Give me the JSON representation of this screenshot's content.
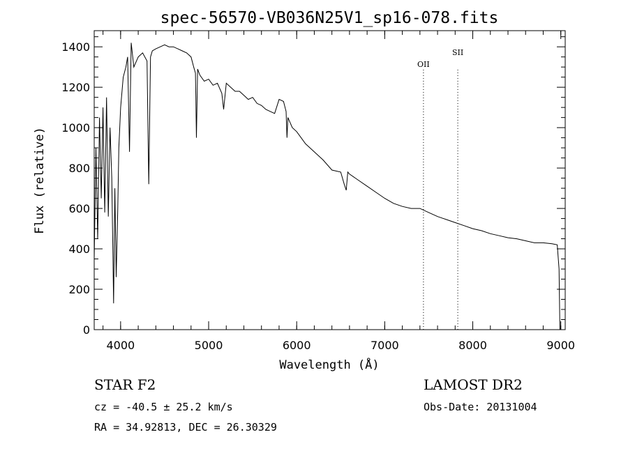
{
  "chart_data": {
    "type": "line",
    "title": "spec-56570-VB036N25V1_sp16-078.fits",
    "xlabel": "Wavelength (Å)",
    "ylabel": "Flux (relative)",
    "xlim": [
      3700,
      9050
    ],
    "ylim": [
      0,
      1480
    ],
    "xticks": [
      4000,
      5000,
      6000,
      7000,
      8000,
      9000
    ],
    "yticks": [
      0,
      200,
      400,
      600,
      800,
      1000,
      1200,
      1400
    ],
    "grid": false,
    "lines": [
      {
        "label": "OII",
        "x": 7440
      },
      {
        "label": "SII",
        "x": 7830
      }
    ],
    "series": [
      {
        "x": [
          3700,
          3720,
          3740,
          3760,
          3780,
          3800,
          3820,
          3840,
          3860,
          3880,
          3900,
          3920,
          3935,
          3950,
          3968,
          3980,
          4000,
          4030,
          4060,
          4080,
          4101,
          4120,
          4150,
          4200,
          4250,
          4300,
          4320,
          4340,
          4360,
          4400,
          4450,
          4500,
          4550,
          4600,
          4650,
          4700,
          4750,
          4800,
          4830,
          4850,
          4861,
          4875,
          4900,
          4950,
          5000,
          5050,
          5100,
          5150,
          5170,
          5200,
          5250,
          5300,
          5350,
          5400,
          5450,
          5500,
          5550,
          5600,
          5650,
          5700,
          5750,
          5800,
          5850,
          5880,
          5890,
          5900,
          5920,
          5950,
          6000,
          6050,
          6100,
          6200,
          6300,
          6400,
          6500,
          6540,
          6563,
          6580,
          6600,
          6700,
          6800,
          6900,
          7000,
          7100,
          7200,
          7300,
          7400,
          7500,
          7600,
          7700,
          7800,
          7900,
          8000,
          8100,
          8200,
          8300,
          8400,
          8500,
          8600,
          8700,
          8800,
          8900,
          8960,
          8980,
          8990,
          9000
        ],
        "y": [
          350,
          900,
          450,
          1050,
          650,
          1100,
          580,
          1150,
          560,
          1000,
          750,
          130,
          700,
          260,
          600,
          900,
          1100,
          1250,
          1300,
          1350,
          880,
          1420,
          1300,
          1350,
          1370,
          1330,
          720,
          1350,
          1380,
          1390,
          1400,
          1410,
          1400,
          1400,
          1390,
          1380,
          1370,
          1350,
          1300,
          1270,
          950,
          1290,
          1260,
          1230,
          1240,
          1210,
          1220,
          1170,
          1090,
          1220,
          1200,
          1180,
          1180,
          1160,
          1140,
          1150,
          1120,
          1110,
          1090,
          1080,
          1070,
          1140,
          1130,
          1080,
          950,
          1050,
          1030,
          1000,
          980,
          950,
          920,
          880,
          840,
          790,
          780,
          720,
          690,
          780,
          770,
          740,
          710,
          680,
          650,
          625,
          610,
          600,
          600,
          580,
          560,
          545,
          530,
          515,
          500,
          490,
          475,
          465,
          455,
          450,
          440,
          430,
          430,
          425,
          420,
          300,
          0,
          0
        ]
      }
    ],
    "annotations": [
      {
        "text": "STAR    F2"
      },
      {
        "text": "LAMOST  DR2"
      },
      {
        "text": "cz = -40.5 ± 25.2 km/s"
      },
      {
        "text": "Obs-Date: 20131004"
      },
      {
        "text": "RA =  34.92813, DEC =  26.30329"
      }
    ]
  }
}
